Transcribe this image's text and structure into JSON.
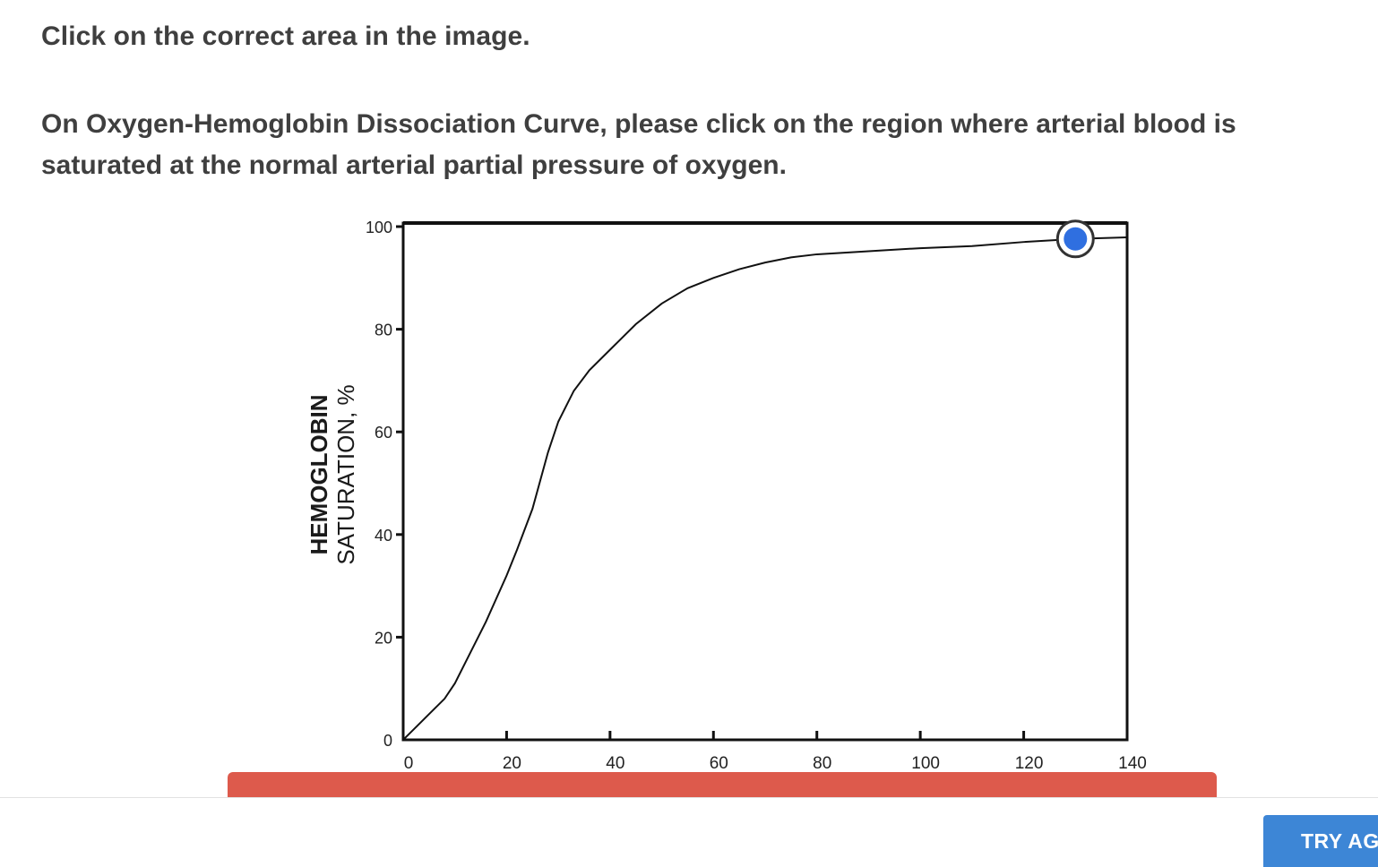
{
  "instruction": "Click on the correct area in the image.",
  "question": "On Oxygen-Hemoglobin Dissociation Curve, please click on the region where arterial blood is saturated at the normal arterial partial pressure of oxygen.",
  "chart_data": {
    "type": "line",
    "ylabel_line1": "HEMOGLOBIN",
    "ylabel_line2": "SATURATION, %",
    "xlim": [
      0,
      140
    ],
    "ylim": [
      0,
      100
    ],
    "xticks": [
      0,
      20,
      40,
      60,
      80,
      100,
      120,
      140
    ],
    "yticks": [
      0,
      20,
      40,
      60,
      80,
      100
    ],
    "series": [
      {
        "x": [
          0,
          2,
          5,
          8,
          10,
          13,
          16,
          20,
          22,
          25,
          28,
          30,
          33,
          36,
          40,
          45,
          50,
          55,
          60,
          65,
          70,
          75,
          80,
          90,
          100,
          110,
          120,
          130,
          140
        ],
        "y": [
          0,
          2,
          5,
          8,
          11,
          17,
          23,
          32,
          37,
          45,
          56,
          62,
          68,
          72,
          76,
          81,
          85,
          88,
          90,
          91.7,
          93,
          94,
          94.6,
          95.2,
          95.8,
          96.2,
          97,
          97.6,
          97.9
        ]
      }
    ],
    "selected_point": {
      "x": 130,
      "y": 97.6
    }
  },
  "footer": {
    "try_again_label": "TRY AG"
  }
}
